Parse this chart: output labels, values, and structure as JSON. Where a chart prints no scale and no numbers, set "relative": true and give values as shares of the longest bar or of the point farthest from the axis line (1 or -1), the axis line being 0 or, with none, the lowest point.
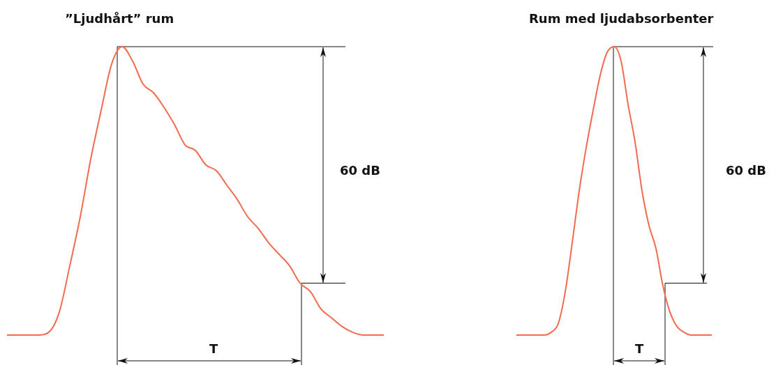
{
  "chart_data": [
    {
      "type": "line",
      "title": "”Ljudhårt” rum",
      "relative": true,
      "categories": [
        null,
        null,
        null,
        null,
        null,
        null,
        null,
        null,
        null,
        null,
        null,
        null,
        null,
        null,
        null,
        null,
        null,
        null,
        null,
        null,
        null,
        null,
        null,
        null,
        null,
        null,
        null,
        null,
        null,
        null,
        null,
        null,
        null,
        null,
        null,
        null,
        null
      ],
      "series": [
        {
          "color": "#f26b4f",
          "values": [
            0,
            0,
            0,
            0,
            0.01,
            0.08,
            0.24,
            0.41,
            0.61,
            0.78,
            0.94,
            1,
            0.95,
            0.87,
            0.84,
            0.79,
            0.73,
            0.66,
            0.64,
            0.59,
            0.57,
            0.52,
            0.47,
            0.41,
            0.37,
            0.32,
            0.28,
            0.24,
            0.18,
            0.15,
            0.09,
            0.06,
            0.03,
            0.01,
            0,
            0,
            0
          ]
        }
      ],
      "ref_lines": [
        {
          "axis": "y",
          "value": 1,
          "color": "#111111"
        },
        {
          "axis": "y",
          "value": 0.18,
          "color": "#111111"
        }
      ],
      "annotations": [
        "60 dB",
        "T"
      ]
    },
    {
      "type": "line",
      "title": "Rum med ljudabsorbenter",
      "relative": true,
      "categories": [
        null,
        null,
        null,
        null,
        null,
        null,
        null,
        null,
        null,
        null,
        null,
        null,
        null,
        null,
        null,
        null,
        null,
        null,
        null,
        null,
        null,
        null,
        null,
        null,
        null,
        null,
        null,
        null,
        null
      ],
      "ref_lines": [
        {
          "axis": "y",
          "value": 1,
          "color": "#111111"
        },
        {
          "axis": "y",
          "value": 0.18,
          "color": "#111111"
        }
      ],
      "series": [
        {
          "color": "#f26b4f",
          "values": [
            0,
            0,
            0,
            0,
            0,
            0.01,
            0.04,
            0.15,
            0.32,
            0.5,
            0.65,
            0.78,
            0.9,
            0.98,
            1,
            0.95,
            0.8,
            0.67,
            0.5,
            0.38,
            0.3,
            0.17,
            0.08,
            0.03,
            0.01,
            0,
            0,
            0,
            0
          ]
        }
      ],
      "annotations": [
        "60 dB",
        "T"
      ]
    }
  ]
}
